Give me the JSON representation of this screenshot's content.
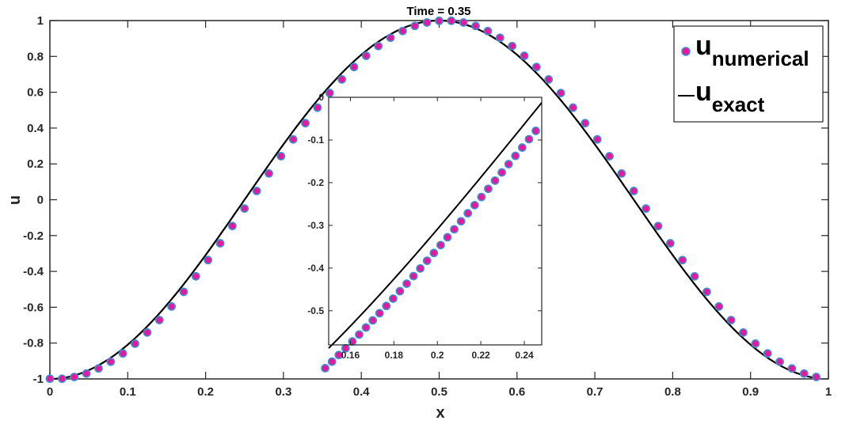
{
  "chart_data": [
    {
      "type": "line",
      "title": "Time = 0.35",
      "xlabel": "x",
      "ylabel": "u",
      "xlim": [
        0,
        1
      ],
      "ylim": [
        -1,
        1
      ],
      "xticks": [
        "0",
        "0.1",
        "0.2",
        "0.3",
        "0.4",
        "0.5",
        "0.6",
        "0.7",
        "0.8",
        "0.9",
        "1"
      ],
      "yticks": [
        "-1",
        "-0.8",
        "-0.6",
        "-0.4",
        "-0.2",
        "0",
        "0.2",
        "0.4",
        "0.6",
        "0.8",
        "1"
      ],
      "grid": false,
      "legend_position": "top-right",
      "series": [
        {
          "name": "u_numerical",
          "legend_main": "u",
          "legend_sub": "numerical",
          "style": "markers",
          "marker_face": "#e6189e",
          "marker_edge": "#3d8fd6",
          "x_start": 0,
          "x_step": 0.015625,
          "count": 64,
          "note_y": "u = -cos(2*pi*(x - 0.0078))"
        },
        {
          "name": "u_exact",
          "legend_main": "u",
          "legend_sub": "exact",
          "style": "line",
          "color": "#000000",
          "x": [
            0,
            0.05,
            0.1,
            0.15,
            0.2,
            0.25,
            0.3,
            0.35,
            0.4,
            0.45,
            0.5,
            0.55,
            0.6,
            0.65,
            0.7,
            0.75,
            0.8,
            0.85,
            0.9,
            0.95,
            0.984
          ],
          "y": [
            -1,
            -0.951,
            -0.809,
            -0.588,
            -0.309,
            0,
            0.309,
            0.588,
            0.809,
            0.951,
            1,
            0.951,
            0.809,
            0.588,
            0.309,
            0,
            -0.309,
            -0.588,
            -0.809,
            -0.951,
            -0.995
          ]
        }
      ]
    },
    {
      "type": "line",
      "role": "inset-zoom",
      "xlim": [
        0.15,
        0.248
      ],
      "ylim": [
        -0.58,
        0
      ],
      "xticks": [
        "0.16",
        "0.18",
        "0.2",
        "0.22",
        "0.24"
      ],
      "yticks": [
        "0",
        "-0.1",
        "-0.2",
        "-0.3",
        "-0.4",
        "-0.5"
      ],
      "series": [
        {
          "name": "u_numerical",
          "style": "markers",
          "x_start": 0.1484,
          "x_step": 0.003125,
          "count": 32
        },
        {
          "name": "u_exact",
          "style": "line",
          "x": [
            0.1484,
            0.175,
            0.2,
            0.225,
            0.25
          ],
          "y": [
            -0.5614,
            -0.454,
            -0.309,
            -0.1564,
            0.0
          ]
        }
      ]
    }
  ]
}
